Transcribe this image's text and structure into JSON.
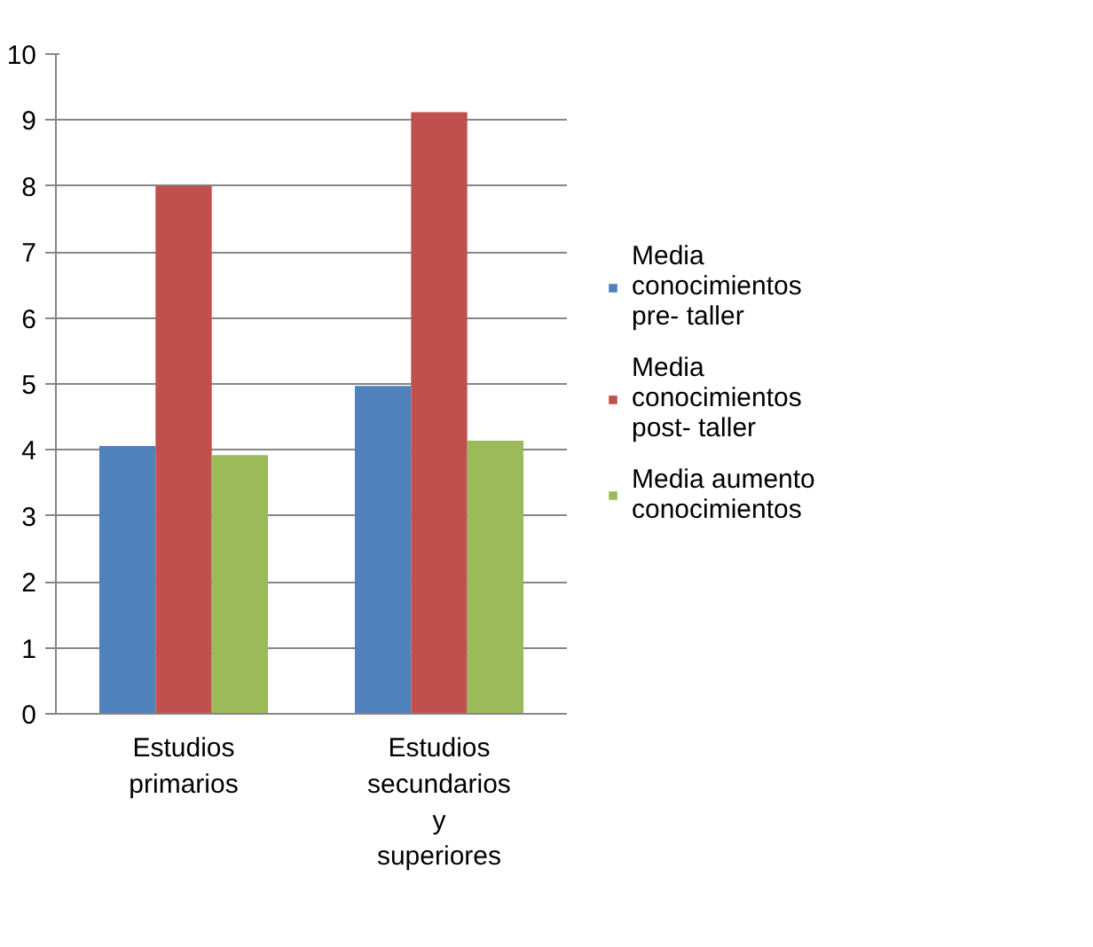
{
  "chart_data": {
    "type": "bar",
    "categories": [
      "Estudios primarios",
      "Estudios secundarios y superiores"
    ],
    "series": [
      {
        "name": "Media conocimientos pre- taller",
        "color": "#4f81bd",
        "values": [
          4.06,
          4.97
        ]
      },
      {
        "name": "Media conocimientos post- taller",
        "color": "#c0504d",
        "values": [
          8.0,
          9.12
        ]
      },
      {
        "name": "Media aumento conocimientos",
        "color": "#9bbb59",
        "values": [
          3.92,
          4.14
        ]
      }
    ],
    "ylim": [
      0,
      10
    ],
    "yticks": [
      0,
      1,
      2,
      3,
      4,
      5,
      6,
      7,
      8,
      9,
      10
    ],
    "grid": "y",
    "legend": "right"
  }
}
